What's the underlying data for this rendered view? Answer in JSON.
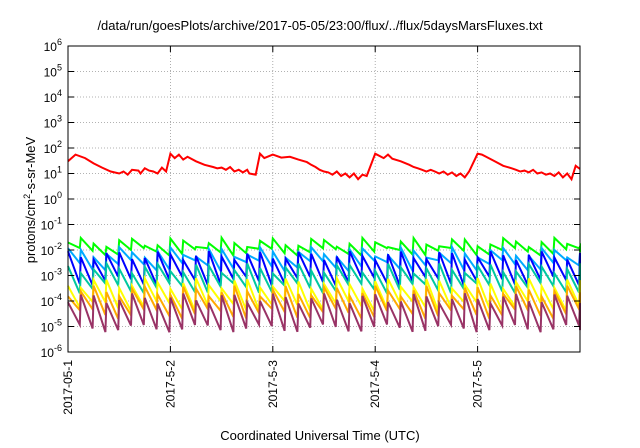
{
  "chart_data": {
    "type": "line",
    "title": "/data/run/goesPlots/archive/2017-05-05/23:00/flux/../flux/5daysMarsFluxes.txt",
    "xlabel": "Coordinated Universal Time (UTC)",
    "ylabel": "protons/cm2-s-sr-MeV",
    "ylabel_parts": {
      "before": "protons/cm",
      "sup": "2",
      "after": "-s-sr-MeV"
    },
    "y_scale": "log",
    "ylim": [
      1e-06,
      1000000.0
    ],
    "xlim": [
      "2017-05-01",
      "2017-05-06"
    ],
    "x_ticks": [
      "2017-05-1",
      "2017-5-2",
      "2017-5-3",
      "2017-5-4",
      "2017-5-5"
    ],
    "y_ticks": [
      {
        "base": "10",
        "exp": "-6"
      },
      {
        "base": "10",
        "exp": "-5"
      },
      {
        "base": "10",
        "exp": "-4"
      },
      {
        "base": "10",
        "exp": "-3"
      },
      {
        "base": "10",
        "exp": "-2"
      },
      {
        "base": "10",
        "exp": "-1"
      },
      {
        "base": "10",
        "exp": "0"
      },
      {
        "base": "10",
        "exp": "1"
      },
      {
        "base": "10",
        "exp": "2"
      },
      {
        "base": "10",
        "exp": "3"
      },
      {
        "base": "10",
        "exp": "4"
      },
      {
        "base": "10",
        "exp": "5"
      },
      {
        "base": "10",
        "exp": "6"
      }
    ],
    "grid": true,
    "grid_style": "dotted",
    "series": [
      {
        "color": "#ff0000",
        "x": [
          "2017-05-01T00:00",
          "2017-05-01T01:45",
          "2017-05-01T04:00",
          "2017-05-01T06:00",
          "2017-05-01T08:00",
          "2017-05-01T10:00",
          "2017-05-01T12:00",
          "2017-05-01T13:00",
          "2017-05-01T14:00",
          "2017-05-01T15:00",
          "2017-05-01T16:30",
          "2017-05-01T17:00",
          "2017-05-01T18:00",
          "2017-05-01T19:00",
          "2017-05-01T20:00",
          "2017-05-01T21:00",
          "2017-05-01T22:00",
          "2017-05-01T23:00",
          "2017-05-02T00:00",
          "2017-05-02T01:00",
          "2017-05-02T02:00",
          "2017-05-02T03:00",
          "2017-05-02T04:00",
          "2017-05-02T06:00",
          "2017-05-02T08:00",
          "2017-05-02T10:00",
          "2017-05-02T11:00",
          "2017-05-02T12:00",
          "2017-05-02T13:00",
          "2017-05-02T14:00",
          "2017-05-02T15:00",
          "2017-05-02T16:00",
          "2017-05-02T17:00",
          "2017-05-02T18:00",
          "2017-05-02T18:30",
          "2017-05-02T20:00",
          "2017-05-02T21:00",
          "2017-05-02T22:00",
          "2017-05-03T00:00",
          "2017-05-03T02:00",
          "2017-05-03T04:00",
          "2017-05-03T06:00",
          "2017-05-03T08:00",
          "2017-05-03T09:00",
          "2017-05-03T10:00",
          "2017-05-03T11:00",
          "2017-05-03T12:00",
          "2017-05-03T13:00",
          "2017-05-03T14:00",
          "2017-05-03T15:00",
          "2017-05-03T16:00",
          "2017-05-03T17:00",
          "2017-05-03T18:00",
          "2017-05-03T19:00",
          "2017-05-03T20:00",
          "2017-05-03T21:00",
          "2017-05-03T22:00",
          "2017-05-04T00:00",
          "2017-05-04T02:00",
          "2017-05-04T03:00",
          "2017-05-04T04:00",
          "2017-05-04T06:00",
          "2017-05-04T08:00",
          "2017-05-04T09:00",
          "2017-05-04T10:00",
          "2017-05-04T11:00",
          "2017-05-04T12:00",
          "2017-05-04T13:00",
          "2017-05-04T14:00",
          "2017-05-04T15:00",
          "2017-05-04T16:00",
          "2017-05-04T17:00",
          "2017-05-04T18:00",
          "2017-05-04T19:00",
          "2017-05-04T20:00",
          "2017-05-04T21:00",
          "2017-05-04T22:00",
          "2017-05-05T00:00",
          "2017-05-05T01:00",
          "2017-05-05T02:00",
          "2017-05-05T04:00",
          "2017-05-05T06:00",
          "2017-05-05T08:00",
          "2017-05-05T09:00",
          "2017-05-05T10:00",
          "2017-05-05T11:00",
          "2017-05-05T12:00",
          "2017-05-05T13:00",
          "2017-05-05T14:00",
          "2017-05-05T15:00",
          "2017-05-05T16:00",
          "2017-05-05T17:00",
          "2017-05-05T18:00",
          "2017-05-05T19:00",
          "2017-05-05T20:00",
          "2017-05-05T21:00",
          "2017-05-05T22:00",
          "2017-05-05T23:00",
          "2017-05-06T00:00"
        ],
        "values": [
          30,
          55,
          40,
          25,
          17,
          12,
          10,
          12,
          9,
          14,
          13,
          10,
          16,
          13,
          12,
          10,
          17,
          12,
          60,
          40,
          55,
          35,
          45,
          30,
          22,
          18,
          16,
          17,
          14,
          18,
          12,
          14,
          11,
          14,
          10,
          9,
          60,
          40,
          55,
          42,
          45,
          35,
          28,
          22,
          18,
          14,
          12,
          11,
          9,
          12,
          8,
          10,
          7,
          10,
          6,
          9,
          8,
          60,
          40,
          55,
          38,
          30,
          22,
          18,
          16,
          14,
          12,
          14,
          12,
          10,
          12,
          9,
          11,
          8,
          10,
          7,
          12,
          60,
          55,
          45,
          30,
          20,
          16,
          14,
          12,
          13,
          11,
          14,
          10,
          11,
          9,
          10,
          8,
          11,
          7,
          10,
          6,
          20,
          15
        ]
      },
      {
        "color": "#00ff00",
        "x_start": "2017-05-01T00:00",
        "x_end": "2017-05-06T00:00",
        "cycle_hours": 3,
        "peak": [
          0.013,
          0.03
        ],
        "trough": [
          0.006,
          0.012
        ]
      },
      {
        "color": "#00aaff",
        "x_start": "2017-05-01T00:00",
        "x_end": "2017-05-06T00:00",
        "cycle_hours": 3,
        "peak": [
          0.005,
          0.013
        ],
        "trough": [
          0.0015,
          0.004
        ]
      },
      {
        "color": "#0000ff",
        "x_start": "2017-05-01T00:00",
        "x_end": "2017-05-06T00:00",
        "cycle_hours": 3,
        "peak": [
          0.004,
          0.009
        ],
        "trough": [
          0.0004,
          0.0009
        ]
      },
      {
        "color": "#00c8a0",
        "x_start": "2017-05-01T00:00",
        "x_end": "2017-05-06T00:00",
        "cycle_hours": 3,
        "peak": [
          0.0012,
          0.003
        ],
        "trough": [
          0.0002,
          0.0005
        ]
      },
      {
        "color": "#ffff00",
        "x_start": "2017-05-01T00:00",
        "x_end": "2017-05-06T00:00",
        "cycle_hours": 3,
        "peak": [
          0.0003,
          0.0008
        ],
        "trough": [
          4e-05,
          0.0001
        ]
      },
      {
        "color": "#ffaa00",
        "x_start": "2017-05-01T00:00",
        "x_end": "2017-05-06T00:00",
        "cycle_hours": 3,
        "peak": [
          0.00015,
          0.0004
        ],
        "trough": [
          2e-05,
          5e-05
        ]
      },
      {
        "color": "#993366",
        "x_start": "2017-05-01T00:00",
        "x_end": "2017-05-06T00:00",
        "cycle_hours": 3,
        "peak": [
          8e-05,
          0.0002
        ],
        "trough": [
          6e-06,
          1.2e-05
        ]
      }
    ]
  }
}
